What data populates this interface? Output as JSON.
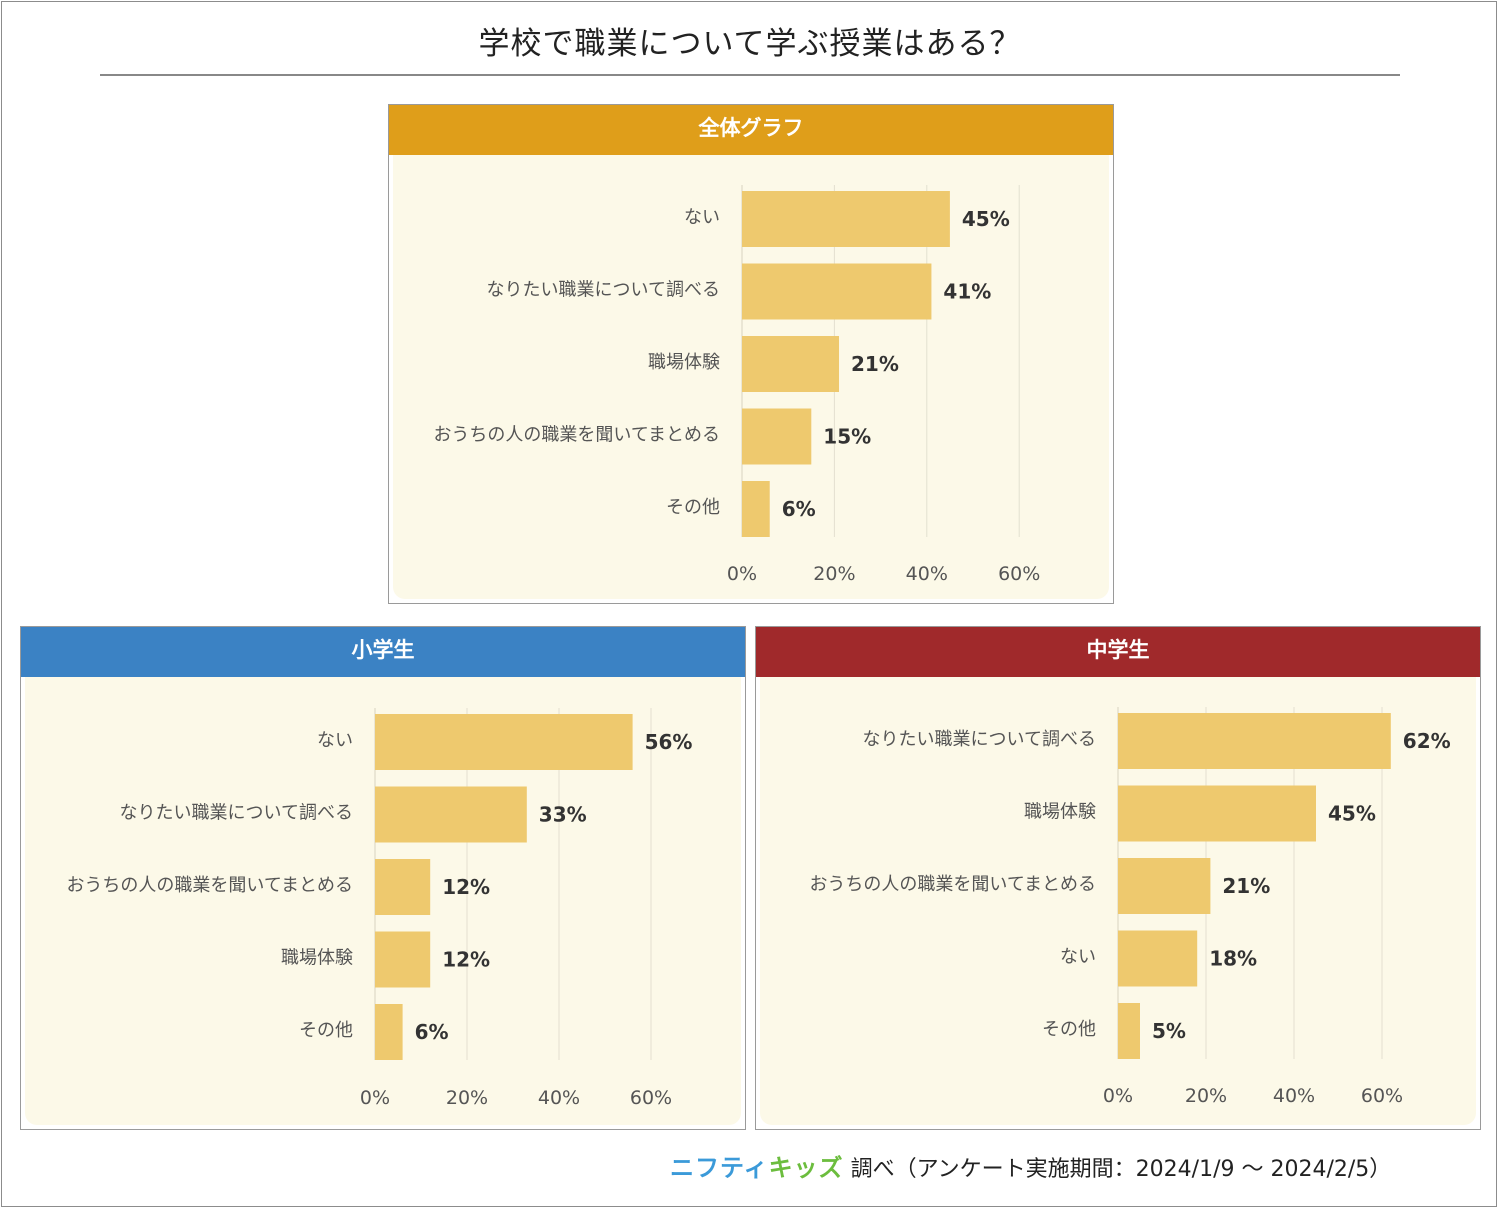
{
  "title": "学校で職業について学ぶ授業はある？",
  "colors": {
    "bar": "#eec96e",
    "panel_bg": "#fcf9e8",
    "overall_header": "#df9e1a",
    "elementary_header": "#3b82c4",
    "junior_header": "#a0292b"
  },
  "footer": {
    "logo_part1": "ニフティ",
    "logo_part2": "キッズ",
    "text": "調べ（アンケート実施期間：2024/1/9 ～ 2024/2/5）"
  },
  "chart_data": [
    {
      "id": "overall",
      "type": "bar",
      "orientation": "horizontal",
      "title": "全体グラフ",
      "categories": [
        "ない",
        "なりたい職業について調べる",
        "職場体験",
        "おうちの人の職業を聞いてまとめる",
        "その他"
      ],
      "values": [
        45,
        41,
        21,
        15,
        6
      ],
      "value_labels": [
        "45%",
        "41%",
        "21%",
        "15%",
        "6%"
      ],
      "xlim": [
        0,
        60
      ],
      "ticks": [
        0,
        20,
        40,
        60
      ],
      "tick_labels": [
        "0%",
        "20%",
        "40%",
        "60%"
      ],
      "grid": true
    },
    {
      "id": "elementary",
      "type": "bar",
      "orientation": "horizontal",
      "title": "小学生",
      "categories": [
        "ない",
        "なりたい職業について調べる",
        "おうちの人の職業を聞いてまとめる",
        "職場体験",
        "その他"
      ],
      "values": [
        56,
        33,
        12,
        12,
        6
      ],
      "value_labels": [
        "56%",
        "33%",
        "12%",
        "12%",
        "6%"
      ],
      "xlim": [
        0,
        60
      ],
      "ticks": [
        0,
        20,
        40,
        60
      ],
      "tick_labels": [
        "0%",
        "20%",
        "40%",
        "60%"
      ],
      "grid": true
    },
    {
      "id": "junior",
      "type": "bar",
      "orientation": "horizontal",
      "title": "中学生",
      "categories": [
        "なりたい職業について調べる",
        "職場体験",
        "おうちの人の職業を聞いてまとめる",
        "ない",
        "その他"
      ],
      "values": [
        62,
        45,
        21,
        18,
        5
      ],
      "value_labels": [
        "62%",
        "45%",
        "21%",
        "18%",
        "5%"
      ],
      "xlim": [
        0,
        60
      ],
      "ticks": [
        0,
        20,
        40,
        60
      ],
      "tick_labels": [
        "0%",
        "20%",
        "40%",
        "60%"
      ],
      "grid": true
    }
  ]
}
